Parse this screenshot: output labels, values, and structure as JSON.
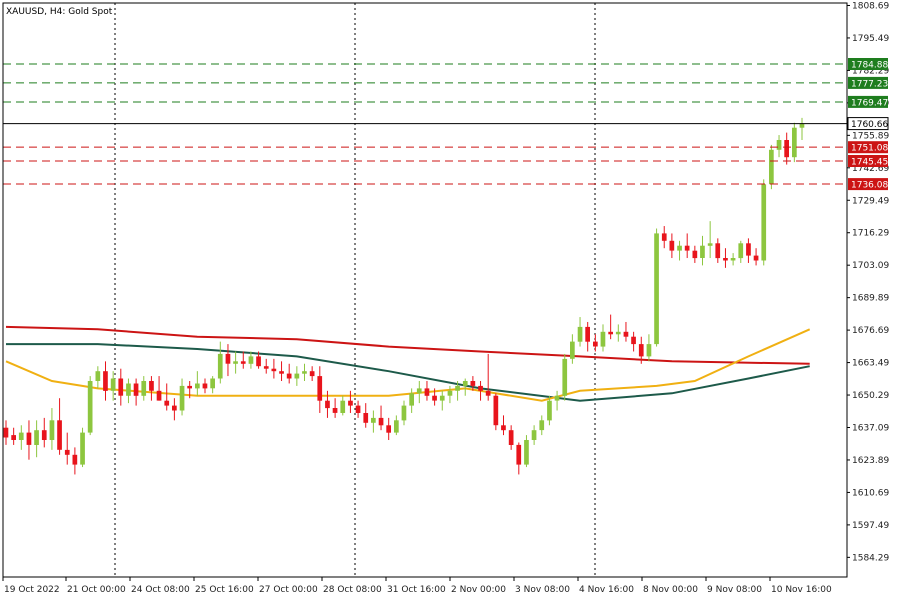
{
  "chart_data": {
    "type": "candlestick",
    "title": "XAUUSD, H4:  Gold Spot",
    "ylim": [
      1576.3,
      1809.7
    ],
    "y_ticks": [
      "1808.69",
      "1795.49",
      "1782.29",
      "1769.09",
      "1755.89",
      "1742.69",
      "1729.49",
      "1716.29",
      "1703.09",
      "1689.89",
      "1676.69",
      "1663.49",
      "1650.29",
      "1637.09",
      "1623.89",
      "1610.69",
      "1597.49",
      "1584.29"
    ],
    "x_labels": [
      "19 Oct 2022",
      "21 Oct 00:00",
      "24 Oct 08:00",
      "25 Oct 16:00",
      "27 Oct 00:00",
      "28 Oct 08:00",
      "31 Oct 16:00",
      "2 Nov 00:00",
      "3 Nov 08:00",
      "4 Nov 16:00",
      "8 Nov 00:00",
      "9 Nov 08:00",
      "10 Nov 16:00"
    ],
    "colors": {
      "up": "#8dc63f",
      "down": "#e8141c",
      "background": "#ffffff",
      "axis": "#000000",
      "grid": "#000000",
      "resistance": "#1e7d1e",
      "support": "#cc1414",
      "current": "#000000"
    },
    "grid": "separators",
    "current_price": 1760.66,
    "resistance_levels": [
      {
        "label": "1784.88",
        "value": 1784.88
      },
      {
        "label": "1777.23",
        "value": 1777.23
      },
      {
        "label": "1769.47",
        "value": 1769.47
      }
    ],
    "support_levels": [
      {
        "label": "1751.08",
        "value": 1751.08
      },
      {
        "label": "1745.45",
        "value": 1745.45
      },
      {
        "label": "1736.08",
        "value": 1736.08
      }
    ],
    "candles": [
      {
        "o": 1637,
        "h": 1640,
        "l": 1630,
        "c": 1633
      },
      {
        "o": 1634,
        "h": 1637,
        "l": 1630,
        "c": 1632
      },
      {
        "o": 1632,
        "h": 1638,
        "l": 1628,
        "c": 1635
      },
      {
        "o": 1635,
        "h": 1640,
        "l": 1624,
        "c": 1630
      },
      {
        "o": 1630,
        "h": 1640,
        "l": 1625,
        "c": 1636
      },
      {
        "o": 1636,
        "h": 1641,
        "l": 1629,
        "c": 1632
      },
      {
        "o": 1632,
        "h": 1645,
        "l": 1628,
        "c": 1640
      },
      {
        "o": 1640,
        "h": 1649,
        "l": 1626,
        "c": 1628
      },
      {
        "o": 1628,
        "h": 1635,
        "l": 1622,
        "c": 1626
      },
      {
        "o": 1626,
        "h": 1629,
        "l": 1618,
        "c": 1622
      },
      {
        "o": 1622,
        "h": 1637,
        "l": 1621,
        "c": 1635
      },
      {
        "o": 1635,
        "h": 1658,
        "l": 1634,
        "c": 1656
      },
      {
        "o": 1656,
        "h": 1662,
        "l": 1653,
        "c": 1660
      },
      {
        "o": 1660,
        "h": 1664,
        "l": 1648,
        "c": 1652
      },
      {
        "o": 1652,
        "h": 1660,
        "l": 1648,
        "c": 1657
      },
      {
        "o": 1657,
        "h": 1661,
        "l": 1646,
        "c": 1650
      },
      {
        "o": 1650,
        "h": 1657,
        "l": 1647,
        "c": 1655
      },
      {
        "o": 1655,
        "h": 1657,
        "l": 1646,
        "c": 1650
      },
      {
        "o": 1650,
        "h": 1658,
        "l": 1648,
        "c": 1656
      },
      {
        "o": 1656,
        "h": 1658,
        "l": 1648,
        "c": 1652
      },
      {
        "o": 1652,
        "h": 1658,
        "l": 1648,
        "c": 1648
      },
      {
        "o": 1648,
        "h": 1655,
        "l": 1644,
        "c": 1646
      },
      {
        "o": 1646,
        "h": 1649,
        "l": 1640,
        "c": 1644
      },
      {
        "o": 1644,
        "h": 1657,
        "l": 1642,
        "c": 1654
      },
      {
        "o": 1654,
        "h": 1656,
        "l": 1649,
        "c": 1653
      },
      {
        "o": 1653,
        "h": 1660,
        "l": 1650,
        "c": 1655
      },
      {
        "o": 1655,
        "h": 1657,
        "l": 1651,
        "c": 1653
      },
      {
        "o": 1653,
        "h": 1658,
        "l": 1651,
        "c": 1657
      },
      {
        "o": 1657,
        "h": 1672,
        "l": 1655,
        "c": 1667
      },
      {
        "o": 1667,
        "h": 1671,
        "l": 1658,
        "c": 1663
      },
      {
        "o": 1663,
        "h": 1668,
        "l": 1659,
        "c": 1664
      },
      {
        "o": 1664,
        "h": 1668,
        "l": 1661,
        "c": 1663
      },
      {
        "o": 1663,
        "h": 1668,
        "l": 1661,
        "c": 1666
      },
      {
        "o": 1666,
        "h": 1668,
        "l": 1661,
        "c": 1662
      },
      {
        "o": 1662,
        "h": 1665,
        "l": 1659,
        "c": 1661
      },
      {
        "o": 1661,
        "h": 1665,
        "l": 1657,
        "c": 1660
      },
      {
        "o": 1660,
        "h": 1664,
        "l": 1656,
        "c": 1659
      },
      {
        "o": 1659,
        "h": 1663,
        "l": 1655,
        "c": 1657
      },
      {
        "o": 1657,
        "h": 1662,
        "l": 1654,
        "c": 1659
      },
      {
        "o": 1659,
        "h": 1663,
        "l": 1656,
        "c": 1660
      },
      {
        "o": 1660,
        "h": 1662,
        "l": 1656,
        "c": 1658
      },
      {
        "o": 1658,
        "h": 1662,
        "l": 1643,
        "c": 1648
      },
      {
        "o": 1648,
        "h": 1652,
        "l": 1641,
        "c": 1645
      },
      {
        "o": 1645,
        "h": 1649,
        "l": 1641,
        "c": 1643
      },
      {
        "o": 1643,
        "h": 1650,
        "l": 1642,
        "c": 1648
      },
      {
        "o": 1648,
        "h": 1652,
        "l": 1643,
        "c": 1646
      },
      {
        "o": 1646,
        "h": 1648,
        "l": 1641,
        "c": 1643
      },
      {
        "o": 1643,
        "h": 1647,
        "l": 1637,
        "c": 1639
      },
      {
        "o": 1639,
        "h": 1644,
        "l": 1635,
        "c": 1641
      },
      {
        "o": 1641,
        "h": 1646,
        "l": 1636,
        "c": 1638
      },
      {
        "o": 1638,
        "h": 1641,
        "l": 1632,
        "c": 1635
      },
      {
        "o": 1635,
        "h": 1642,
        "l": 1634,
        "c": 1640
      },
      {
        "o": 1640,
        "h": 1648,
        "l": 1638,
        "c": 1646
      },
      {
        "o": 1646,
        "h": 1653,
        "l": 1643,
        "c": 1651
      },
      {
        "o": 1651,
        "h": 1656,
        "l": 1647,
        "c": 1653
      },
      {
        "o": 1653,
        "h": 1656,
        "l": 1648,
        "c": 1650
      },
      {
        "o": 1650,
        "h": 1653,
        "l": 1646,
        "c": 1648
      },
      {
        "o": 1648,
        "h": 1652,
        "l": 1644,
        "c": 1650
      },
      {
        "o": 1650,
        "h": 1654,
        "l": 1647,
        "c": 1652
      },
      {
        "o": 1652,
        "h": 1656,
        "l": 1648,
        "c": 1654
      },
      {
        "o": 1654,
        "h": 1657,
        "l": 1650,
        "c": 1656
      },
      {
        "o": 1656,
        "h": 1658,
        "l": 1652,
        "c": 1654
      },
      {
        "o": 1654,
        "h": 1656,
        "l": 1648,
        "c": 1652
      },
      {
        "o": 1652,
        "h": 1667,
        "l": 1648,
        "c": 1650
      },
      {
        "o": 1650,
        "h": 1651,
        "l": 1636,
        "c": 1638
      },
      {
        "o": 1638,
        "h": 1642,
        "l": 1634,
        "c": 1636
      },
      {
        "o": 1636,
        "h": 1638,
        "l": 1628,
        "c": 1630
      },
      {
        "o": 1630,
        "h": 1631,
        "l": 1618,
        "c": 1622
      },
      {
        "o": 1622,
        "h": 1634,
        "l": 1621,
        "c": 1632
      },
      {
        "o": 1632,
        "h": 1638,
        "l": 1630,
        "c": 1636
      },
      {
        "o": 1636,
        "h": 1642,
        "l": 1634,
        "c": 1640
      },
      {
        "o": 1640,
        "h": 1650,
        "l": 1638,
        "c": 1648
      },
      {
        "o": 1648,
        "h": 1652,
        "l": 1644,
        "c": 1650
      },
      {
        "o": 1650,
        "h": 1667,
        "l": 1648,
        "c": 1665
      },
      {
        "o": 1665,
        "h": 1675,
        "l": 1663,
        "c": 1672
      },
      {
        "o": 1672,
        "h": 1682,
        "l": 1670,
        "c": 1678
      },
      {
        "o": 1678,
        "h": 1680,
        "l": 1668,
        "c": 1672
      },
      {
        "o": 1672,
        "h": 1675,
        "l": 1668,
        "c": 1670
      },
      {
        "o": 1670,
        "h": 1679,
        "l": 1668,
        "c": 1676
      },
      {
        "o": 1676,
        "h": 1683,
        "l": 1673,
        "c": 1675
      },
      {
        "o": 1675,
        "h": 1679,
        "l": 1672,
        "c": 1676
      },
      {
        "o": 1676,
        "h": 1680,
        "l": 1672,
        "c": 1674
      },
      {
        "o": 1674,
        "h": 1676,
        "l": 1668,
        "c": 1671
      },
      {
        "o": 1671,
        "h": 1674,
        "l": 1663,
        "c": 1666
      },
      {
        "o": 1666,
        "h": 1675,
        "l": 1664,
        "c": 1671
      },
      {
        "o": 1671,
        "h": 1718,
        "l": 1670,
        "c": 1716
      },
      {
        "o": 1716,
        "h": 1719,
        "l": 1710,
        "c": 1713
      },
      {
        "o": 1713,
        "h": 1716,
        "l": 1706,
        "c": 1709
      },
      {
        "o": 1709,
        "h": 1713,
        "l": 1705,
        "c": 1711
      },
      {
        "o": 1711,
        "h": 1716,
        "l": 1706,
        "c": 1709
      },
      {
        "o": 1709,
        "h": 1711,
        "l": 1704,
        "c": 1706
      },
      {
        "o": 1706,
        "h": 1715,
        "l": 1703,
        "c": 1711
      },
      {
        "o": 1711,
        "h": 1721,
        "l": 1706,
        "c": 1712
      },
      {
        "o": 1712,
        "h": 1714,
        "l": 1704,
        "c": 1706
      },
      {
        "o": 1706,
        "h": 1710,
        "l": 1702,
        "c": 1705
      },
      {
        "o": 1705,
        "h": 1708,
        "l": 1703,
        "c": 1706
      },
      {
        "o": 1706,
        "h": 1713,
        "l": 1704,
        "c": 1712
      },
      {
        "o": 1712,
        "h": 1714,
        "l": 1704,
        "c": 1707
      },
      {
        "o": 1707,
        "h": 1710,
        "l": 1703,
        "c": 1705
      },
      {
        "o": 1705,
        "h": 1738,
        "l": 1703,
        "c": 1736
      },
      {
        "o": 1736,
        "h": 1752,
        "l": 1734,
        "c": 1750
      },
      {
        "o": 1750,
        "h": 1756,
        "l": 1747,
        "c": 1754
      },
      {
        "o": 1754,
        "h": 1757,
        "l": 1744,
        "c": 1747
      },
      {
        "o": 1747,
        "h": 1761,
        "l": 1745,
        "c": 1759
      },
      {
        "o": 1759,
        "h": 1763,
        "l": 1754,
        "c": 1760.66
      }
    ],
    "series": [
      {
        "color": "#cc1414",
        "values": [
          [
            0,
            1678
          ],
          [
            12,
            1677
          ],
          [
            25,
            1674
          ],
          [
            38,
            1673
          ],
          [
            50,
            1670
          ],
          [
            62,
            1668
          ],
          [
            75,
            1666
          ],
          [
            87,
            1664
          ],
          [
            105,
            1663
          ]
        ]
      },
      {
        "color": "#1d5a4a",
        "values": [
          [
            0,
            1671
          ],
          [
            12,
            1671
          ],
          [
            25,
            1669
          ],
          [
            38,
            1666
          ],
          [
            50,
            1660
          ],
          [
            62,
            1653
          ],
          [
            75,
            1648
          ],
          [
            87,
            1651
          ],
          [
            97,
            1657
          ],
          [
            105,
            1662
          ]
        ]
      },
      {
        "color": "#f0b012",
        "values": [
          [
            0,
            1664
          ],
          [
            6,
            1656
          ],
          [
            12,
            1653
          ],
          [
            25,
            1650
          ],
          [
            38,
            1650
          ],
          [
            50,
            1650
          ],
          [
            60,
            1653
          ],
          [
            70,
            1648
          ],
          [
            75,
            1652
          ],
          [
            85,
            1654
          ],
          [
            90,
            1656
          ],
          [
            97,
            1666
          ],
          [
            105,
            1677
          ]
        ]
      }
    ]
  }
}
